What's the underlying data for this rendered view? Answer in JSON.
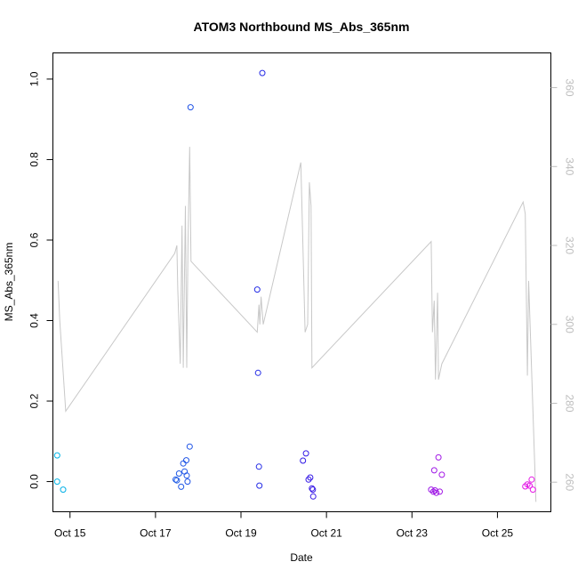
{
  "chart_data": {
    "type": "scatter",
    "title": "ATOM3 Northbound MS_Abs_365nm",
    "xlabel": "Date",
    "ylabel": "MS_Abs_365nm",
    "xlim": [
      14.6,
      26.25
    ],
    "ylim": [
      -0.075,
      1.065
    ],
    "x_ticks": [
      15,
      17,
      19,
      21,
      23,
      25
    ],
    "x_tick_labels": [
      "Oct 15",
      "Oct 17",
      "Oct 19",
      "Oct 21",
      "Oct 23",
      "Oct 25"
    ],
    "y_ticks": [
      0.0,
      0.2,
      0.4,
      0.6,
      0.8,
      1.0
    ],
    "y_tick_labels": [
      "0.0",
      "0.2",
      "0.4",
      "0.6",
      "0.8",
      "1.0"
    ],
    "y2_lim": [
      252.5,
      368.8
    ],
    "y2_ticks": [
      260,
      280,
      300,
      320,
      340,
      360
    ],
    "y2_tick_labels": [
      "260",
      "280",
      "300",
      "320",
      "340",
      "360"
    ],
    "colors": {
      "line": "#c8c8c8",
      "right_axis": "#bdbdbd",
      "frame": "#000000"
    },
    "series": [
      {
        "marker": "open-circle",
        "color_gradient": [
          "#00b4e6",
          "#1e5ae6",
          "#2818e6",
          "#9018e6",
          "#e818e6"
        ],
        "points": [
          {
            "x": 14.7,
            "y": 0.065
          },
          {
            "x": 14.7,
            "y": 0.0
          },
          {
            "x": 14.84,
            "y": -0.02
          },
          {
            "x": 17.47,
            "y": 0.005
          },
          {
            "x": 17.5,
            "y": 0.003
          },
          {
            "x": 17.55,
            "y": 0.02
          },
          {
            "x": 17.6,
            "y": -0.013
          },
          {
            "x": 17.65,
            "y": 0.045
          },
          {
            "x": 17.68,
            "y": 0.025
          },
          {
            "x": 17.72,
            "y": 0.053
          },
          {
            "x": 17.73,
            "y": 0.015
          },
          {
            "x": 17.75,
            "y": 0.0
          },
          {
            "x": 17.8,
            "y": 0.087
          },
          {
            "x": 17.82,
            "y": 0.93
          },
          {
            "x": 19.38,
            "y": 0.477
          },
          {
            "x": 19.4,
            "y": 0.27
          },
          {
            "x": 19.42,
            "y": 0.037
          },
          {
            "x": 19.43,
            "y": -0.01
          },
          {
            "x": 19.5,
            "y": 1.015
          },
          {
            "x": 20.45,
            "y": 0.052
          },
          {
            "x": 20.52,
            "y": 0.07
          },
          {
            "x": 20.58,
            "y": 0.005
          },
          {
            "x": 20.62,
            "y": 0.01
          },
          {
            "x": 20.66,
            "y": -0.017
          },
          {
            "x": 20.68,
            "y": -0.02
          },
          {
            "x": 20.69,
            "y": -0.037
          },
          {
            "x": 23.45,
            "y": -0.02
          },
          {
            "x": 23.5,
            "y": -0.025
          },
          {
            "x": 23.52,
            "y": 0.028
          },
          {
            "x": 23.54,
            "y": -0.022
          },
          {
            "x": 23.57,
            "y": -0.028
          },
          {
            "x": 23.62,
            "y": 0.06
          },
          {
            "x": 23.65,
            "y": -0.025
          },
          {
            "x": 23.7,
            "y": 0.017
          },
          {
            "x": 25.65,
            "y": -0.012
          },
          {
            "x": 25.7,
            "y": -0.007
          },
          {
            "x": 25.75,
            "y": -0.01
          },
          {
            "x": 25.8,
            "y": 0.005
          },
          {
            "x": 25.83,
            "y": -0.02
          }
        ]
      },
      {
        "axis": "right",
        "style": "line",
        "points": [
          {
            "x": 14.72,
            "y": 311
          },
          {
            "x": 14.76,
            "y": 301
          },
          {
            "x": 14.9,
            "y": 278
          },
          {
            "x": 17.45,
            "y": 318
          },
          {
            "x": 17.5,
            "y": 320
          },
          {
            "x": 17.52,
            "y": 309
          },
          {
            "x": 17.58,
            "y": 290
          },
          {
            "x": 17.62,
            "y": 325
          },
          {
            "x": 17.65,
            "y": 289
          },
          {
            "x": 17.7,
            "y": 330
          },
          {
            "x": 17.73,
            "y": 289
          },
          {
            "x": 17.76,
            "y": 320
          },
          {
            "x": 17.8,
            "y": 345
          },
          {
            "x": 17.83,
            "y": 316
          },
          {
            "x": 19.38,
            "y": 298
          },
          {
            "x": 19.42,
            "y": 305
          },
          {
            "x": 19.44,
            "y": 300
          },
          {
            "x": 19.47,
            "y": 307
          },
          {
            "x": 19.52,
            "y": 300
          },
          {
            "x": 20.4,
            "y": 341
          },
          {
            "x": 20.5,
            "y": 298
          },
          {
            "x": 20.56,
            "y": 300
          },
          {
            "x": 20.6,
            "y": 336
          },
          {
            "x": 20.64,
            "y": 330
          },
          {
            "x": 20.66,
            "y": 289
          },
          {
            "x": 23.45,
            "y": 321
          },
          {
            "x": 23.48,
            "y": 298
          },
          {
            "x": 23.52,
            "y": 306
          },
          {
            "x": 23.55,
            "y": 286
          },
          {
            "x": 23.6,
            "y": 308
          },
          {
            "x": 23.62,
            "y": 286
          },
          {
            "x": 23.7,
            "y": 290
          },
          {
            "x": 25.6,
            "y": 331
          },
          {
            "x": 25.65,
            "y": 328
          },
          {
            "x": 25.7,
            "y": 287
          },
          {
            "x": 25.73,
            "y": 311
          },
          {
            "x": 25.9,
            "y": 255
          }
        ]
      }
    ]
  }
}
